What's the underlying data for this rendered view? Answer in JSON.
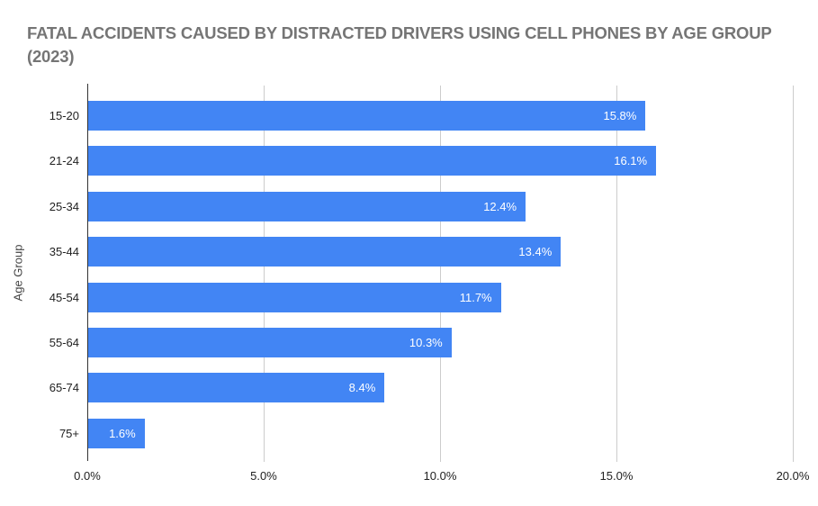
{
  "title": "FATAL ACCIDENTS CAUSED BY DISTRACTED DRIVERS USING CELL PHONES BY AGE GROUP (2023)",
  "colors": {
    "background": "#ffffff",
    "bar": "#4285F4",
    "title": "#757575",
    "gridline": "#cccccc",
    "axis_line": "#333333",
    "axis_title": "#444444",
    "tick_label": "#222222",
    "value_label": "#ffffff"
  },
  "chart_data": {
    "type": "bar",
    "orientation": "horizontal",
    "title": "FATAL ACCIDENTS CAUSED BY DISTRACTED DRIVERS USING CELL PHONES BY AGE GROUP (2023)",
    "xlabel": "",
    "ylabel": "Age Group",
    "categories": [
      "15-20",
      "21-24",
      "25-34",
      "35-44",
      "45-54",
      "55-64",
      "65-74",
      "75+"
    ],
    "values": [
      15.8,
      16.1,
      12.4,
      13.4,
      11.7,
      10.3,
      8.4,
      1.6
    ],
    "value_labels": [
      "15.8%",
      "16.1%",
      "12.4%",
      "13.4%",
      "11.7%",
      "10.3%",
      "8.4%",
      "1.6%"
    ],
    "xlim": [
      0,
      20
    ],
    "x_ticks": [
      "0.0%",
      "5.0%",
      "10.0%",
      "15.0%",
      "20.0%"
    ],
    "x_tick_values": [
      0,
      5,
      10,
      15,
      20
    ],
    "grid": "vertical",
    "legend": "none"
  }
}
